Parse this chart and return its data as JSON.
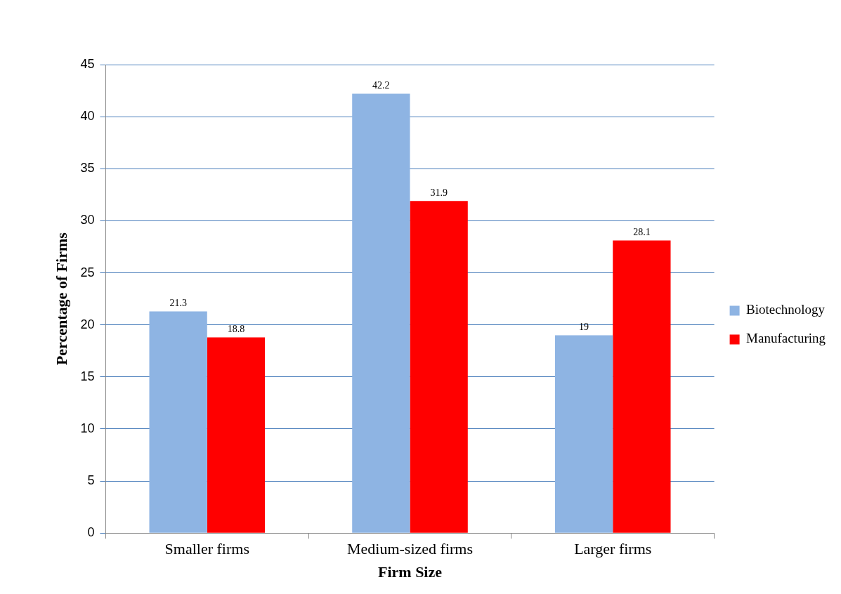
{
  "chart_data": {
    "type": "bar",
    "xlabel": "Firm Size",
    "ylabel": "Percentage of Firms",
    "categories": [
      "Smaller firms",
      "Medium-sized firms",
      "Larger firms"
    ],
    "series": [
      {
        "name": "Biotechnology",
        "color": "#8eb4e3",
        "values": [
          21.3,
          42.2,
          19
        ]
      },
      {
        "name": "Manufacturing",
        "color": "#ff0000",
        "values": [
          18.8,
          31.9,
          28.1
        ]
      }
    ],
    "ylim": [
      0,
      45
    ],
    "yticks": [
      0,
      5,
      10,
      15,
      20,
      25,
      30,
      35,
      40,
      45
    ],
    "grid": "y",
    "legend": "right",
    "data_labels": true
  }
}
